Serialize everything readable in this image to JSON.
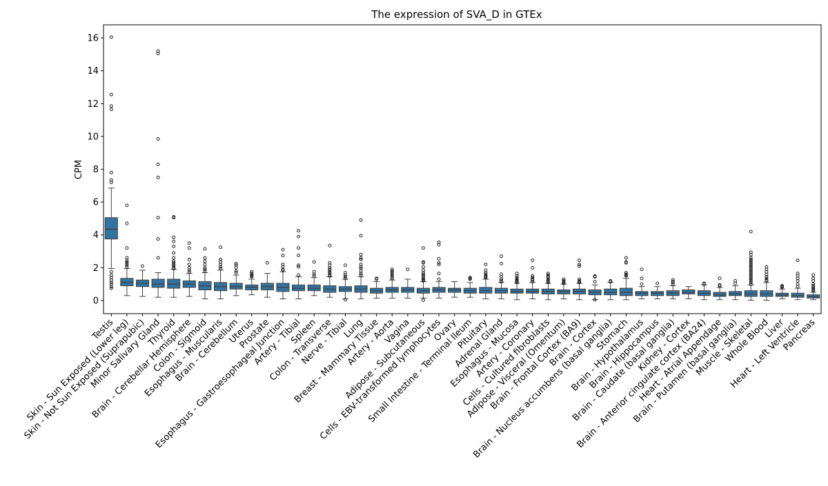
{
  "chart_data": {
    "type": "box",
    "title": "The expression of SVA_D in GTEx",
    "xlabel": "",
    "ylabel": "CPM",
    "ylim": [
      -0.8,
      16.8
    ],
    "yticks": [
      0,
      2,
      4,
      6,
      8,
      10,
      12,
      14,
      16
    ],
    "grid": false,
    "legend": "none",
    "box_color": "#3274a1",
    "categories": [
      "Testis",
      "Skin - Sun Exposed (Lower leg)",
      "Skin - Not Sun Exposed (Suprapubic)",
      "Minor Salivary Gland",
      "Thyroid",
      "Brain - Cerebellar Hemisphere",
      "Colon - Sigmoid",
      "Esophagus - Muscularis",
      "Brain - Cerebellum",
      "Uterus",
      "Prostate",
      "Esophagus - Gastroesophageal Junction",
      "Artery - Tibial",
      "Spleen",
      "Colon - Transverse",
      "Nerve - Tibial",
      "Lung",
      "Breast - Mammary Tissue",
      "Artery - Aorta",
      "Vagina",
      "Adipose - Subcutaneous",
      "Cells - EBV-transformed lymphocytes",
      "Ovary",
      "Small Intestine - Terminal Ileum",
      "Pituitary",
      "Adrenal Gland",
      "Esophagus - Mucosa",
      "Artery - Coronary",
      "Cells - Cultured fibroblasts",
      "Adipose - Visceral (Omentum)",
      "Brain - Frontal Cortex (BA9)",
      "Brain - Cortex",
      "Brain - Nucleus accumbens (basal ganglia)",
      "Stomach",
      "Brain - Hypothalamus",
      "Brain - Hippocampus",
      "Brain - Caudate (basal ganglia)",
      "Kidney - Cortex",
      "Brain - Anterior cingulate cortex (BA24)",
      "Heart - Atrial Appendage",
      "Brain - Putamen (basal ganglia)",
      "Muscle - Skeletal",
      "Whole Blood",
      "Liver",
      "Heart - Left Ventricle",
      "Pancreas"
    ],
    "boxes": [
      {
        "whislo": 1.95,
        "q1": 3.75,
        "med": 4.35,
        "q3": 5.05,
        "whishi": 6.85,
        "fliers": [
          16.05,
          12.55,
          11.85,
          11.65,
          7.8,
          7.35,
          7.2,
          1.75,
          1.55,
          1.4,
          1.25,
          1.1,
          1.0,
          0.85,
          0.75
        ]
      },
      {
        "whislo": 0.3,
        "q1": 0.9,
        "med": 1.1,
        "q3": 1.35,
        "whishi": 1.95,
        "fliers": [
          5.8,
          4.7,
          3.2,
          2.6,
          2.45,
          2.35,
          2.25,
          2.15,
          2.05
        ]
      },
      {
        "whislo": 0.25,
        "q1": 0.85,
        "med": 1.05,
        "q3": 1.25,
        "whishi": 1.85,
        "fliers": [
          2.1
        ]
      },
      {
        "whislo": 0.2,
        "q1": 0.8,
        "med": 1.0,
        "q3": 1.3,
        "whishi": 1.7,
        "fliers": [
          15.2,
          15.05,
          9.85,
          8.3,
          7.5,
          5.05,
          3.75,
          2.6
        ]
      },
      {
        "whislo": 0.2,
        "q1": 0.75,
        "med": 1.0,
        "q3": 1.3,
        "whishi": 1.9,
        "fliers": [
          5.1,
          5.05,
          3.85,
          3.6,
          3.3,
          2.9,
          2.6,
          2.4,
          2.3,
          2.2,
          2.1,
          2.0,
          1.95
        ]
      },
      {
        "whislo": 0.25,
        "q1": 0.8,
        "med": 1.0,
        "q3": 1.2,
        "whishi": 1.65,
        "fliers": [
          3.5,
          3.2,
          2.5,
          2.2,
          2.0,
          1.85,
          1.75
        ]
      },
      {
        "whislo": 0.1,
        "q1": 0.65,
        "med": 0.9,
        "q3": 1.15,
        "whishi": 1.7,
        "fliers": [
          3.15,
          2.6,
          2.4,
          2.2,
          2.0,
          1.9,
          1.8
        ]
      },
      {
        "whislo": 0.1,
        "q1": 0.6,
        "med": 0.85,
        "q3": 1.1,
        "whishi": 1.85,
        "fliers": [
          3.25,
          2.5,
          2.35,
          2.2,
          2.05,
          1.95
        ]
      },
      {
        "whislo": 0.3,
        "q1": 0.7,
        "med": 0.85,
        "q3": 1.05,
        "whishi": 1.55,
        "fliers": [
          2.25,
          2.15,
          2.0,
          1.8,
          1.7
        ]
      },
      {
        "whislo": 0.35,
        "q1": 0.65,
        "med": 0.8,
        "q3": 0.95,
        "whishi": 1.3,
        "fliers": [
          1.75,
          1.65,
          1.55,
          1.5,
          1.45
        ]
      },
      {
        "whislo": 0.2,
        "q1": 0.65,
        "med": 0.85,
        "q3": 1.05,
        "whishi": 1.65,
        "fliers": [
          2.3
        ]
      },
      {
        "whislo": 0.1,
        "q1": 0.55,
        "med": 0.8,
        "q3": 1.05,
        "whishi": 1.75,
        "fliers": [
          3.1,
          2.75,
          2.2,
          2.05,
          1.9,
          1.85
        ]
      },
      {
        "whislo": 0.1,
        "q1": 0.6,
        "med": 0.75,
        "q3": 0.95,
        "whishi": 1.45,
        "fliers": [
          4.25,
          3.9,
          3.2,
          2.75,
          2.15,
          2.05,
          1.55
        ]
      },
      {
        "whislo": 0.3,
        "q1": 0.6,
        "med": 0.75,
        "q3": 0.95,
        "whishi": 1.4,
        "fliers": [
          2.35,
          1.75,
          1.6,
          1.5
        ]
      },
      {
        "whislo": 0.2,
        "q1": 0.5,
        "med": 0.7,
        "q3": 0.9,
        "whishi": 1.45,
        "fliers": [
          3.35,
          2.3,
          2.15,
          2.0,
          1.9,
          1.85,
          1.75,
          1.65,
          1.55,
          1.5
        ]
      },
      {
        "whislo": 0.1,
        "q1": 0.55,
        "med": 0.7,
        "q3": 0.85,
        "whishi": 1.3,
        "fliers": [
          2.15,
          1.7,
          1.55,
          1.45,
          1.35,
          0.05
        ]
      },
      {
        "whislo": 0.1,
        "q1": 0.5,
        "med": 0.7,
        "q3": 0.9,
        "whishi": 1.45,
        "fliers": [
          4.9,
          3.95,
          2.8,
          2.6,
          2.5,
          2.2,
          2.05,
          1.95,
          1.8,
          1.65,
          1.55
        ]
      },
      {
        "whislo": 0.15,
        "q1": 0.45,
        "med": 0.6,
        "q3": 0.75,
        "whishi": 1.15,
        "fliers": [
          1.35,
          1.3
        ]
      },
      {
        "whislo": 0.15,
        "q1": 0.5,
        "med": 0.65,
        "q3": 0.8,
        "whishi": 1.25,
        "fliers": [
          1.9,
          1.8,
          1.7,
          1.6,
          1.5,
          1.4,
          1.35
        ]
      },
      {
        "whislo": 0.15,
        "q1": 0.5,
        "med": 0.65,
        "q3": 0.8,
        "whishi": 1.3,
        "fliers": [
          1.9
        ]
      },
      {
        "whislo": 0.15,
        "q1": 0.45,
        "med": 0.6,
        "q3": 0.75,
        "whishi": 1.15,
        "fliers": [
          3.2,
          2.35,
          2.3,
          2.05,
          1.85,
          1.7,
          1.6,
          1.5,
          1.4,
          1.3,
          1.25,
          1.2,
          0.02
        ]
      },
      {
        "whislo": 0.15,
        "q1": 0.5,
        "med": 0.65,
        "q3": 0.8,
        "whishi": 1.15,
        "fliers": [
          3.55,
          3.4,
          2.55,
          2.3,
          2.2,
          1.65,
          1.3
        ]
      },
      {
        "whislo": 0.2,
        "q1": 0.5,
        "med": 0.65,
        "q3": 0.75,
        "whishi": 1.15,
        "fliers": []
      },
      {
        "whislo": 0.2,
        "q1": 0.45,
        "med": 0.6,
        "q3": 0.75,
        "whishi": 1.1,
        "fliers": [
          1.4,
          1.35,
          1.3
        ]
      },
      {
        "whislo": 0.1,
        "q1": 0.45,
        "med": 0.6,
        "q3": 0.8,
        "whishi": 1.3,
        "fliers": [
          2.2,
          1.85,
          1.7,
          1.6,
          1.5,
          1.45,
          1.4
        ]
      },
      {
        "whislo": 0.1,
        "q1": 0.45,
        "med": 0.6,
        "q3": 0.75,
        "whishi": 1.1,
        "fliers": [
          2.7,
          2.25,
          1.6,
          1.45,
          1.3,
          1.2,
          1.15
        ]
      },
      {
        "whislo": 0.05,
        "q1": 0.45,
        "med": 0.55,
        "q3": 0.7,
        "whishi": 1.05,
        "fliers": [
          1.65,
          1.5,
          1.4,
          1.3,
          1.25,
          1.2,
          1.15,
          1.1
        ]
      },
      {
        "whislo": 0.1,
        "q1": 0.45,
        "med": 0.55,
        "q3": 0.7,
        "whishi": 1.1,
        "fliers": [
          2.45,
          2.0,
          1.5,
          1.4,
          1.3,
          1.25,
          1.15
        ]
      },
      {
        "whislo": 0.05,
        "q1": 0.4,
        "med": 0.55,
        "q3": 0.7,
        "whishi": 1.05,
        "fliers": [
          1.65,
          1.55,
          1.45,
          1.4,
          1.3,
          1.2,
          1.15,
          1.1
        ]
      },
      {
        "whislo": 0.1,
        "q1": 0.4,
        "med": 0.55,
        "q3": 0.65,
        "whishi": 1.0,
        "fliers": [
          1.3,
          1.2,
          1.15,
          1.1,
          1.05
        ]
      },
      {
        "whislo": 0.05,
        "q1": 0.4,
        "med": 0.55,
        "q3": 0.7,
        "whishi": 1.05,
        "fliers": [
          2.45,
          2.2,
          2.1,
          1.3,
          1.2,
          1.15,
          1.1
        ]
      },
      {
        "whislo": 0.05,
        "q1": 0.35,
        "med": 0.5,
        "q3": 0.65,
        "whishi": 0.95,
        "fliers": [
          1.5,
          1.45,
          1.15,
          0.05
        ]
      },
      {
        "whislo": 0.05,
        "q1": 0.35,
        "med": 0.5,
        "q3": 0.7,
        "whishi": 1.1,
        "fliers": [
          1.2,
          1.15
        ]
      },
      {
        "whislo": 0.05,
        "q1": 0.3,
        "med": 0.5,
        "q3": 0.75,
        "whishi": 1.35,
        "fliers": [
          2.6,
          2.35,
          2.3,
          1.7,
          1.6,
          1.55,
          1.5
        ]
      },
      {
        "whislo": 0.1,
        "q1": 0.3,
        "med": 0.45,
        "q3": 0.55,
        "whishi": 0.85,
        "fliers": [
          1.9,
          1.35,
          1.0
        ]
      },
      {
        "whislo": 0.1,
        "q1": 0.3,
        "med": 0.45,
        "q3": 0.55,
        "whishi": 0.85,
        "fliers": [
          1.05
        ]
      },
      {
        "whislo": 0.1,
        "q1": 0.3,
        "med": 0.45,
        "q3": 0.6,
        "whishi": 0.9,
        "fliers": [
          1.25,
          1.15,
          1.1,
          1.0
        ]
      },
      {
        "whislo": 0.1,
        "q1": 0.4,
        "med": 0.5,
        "q3": 0.65,
        "whishi": 0.85,
        "fliers": []
      },
      {
        "whislo": 0.05,
        "q1": 0.3,
        "med": 0.45,
        "q3": 0.6,
        "whishi": 0.95,
        "fliers": [
          1.05,
          1.0
        ]
      },
      {
        "whislo": 0.05,
        "q1": 0.25,
        "med": 0.35,
        "q3": 0.5,
        "whishi": 0.8,
        "fliers": [
          1.35,
          0.95,
          0.9
        ]
      },
      {
        "whislo": 0.05,
        "q1": 0.3,
        "med": 0.4,
        "q3": 0.55,
        "whishi": 0.9,
        "fliers": [
          1.2,
          1.05
        ]
      },
      {
        "whislo": 0.02,
        "q1": 0.25,
        "med": 0.4,
        "q3": 0.6,
        "whishi": 0.95,
        "fliers": [
          4.2,
          2.95,
          2.8,
          2.6,
          2.5,
          2.4,
          2.3,
          2.2,
          2.1,
          2.0,
          1.9,
          1.8,
          1.7,
          1.6,
          1.5,
          1.4,
          1.3,
          1.2,
          1.1,
          1.0
        ]
      },
      {
        "whislo": 0.02,
        "q1": 0.25,
        "med": 0.4,
        "q3": 0.6,
        "whishi": 1.1,
        "fliers": [
          2.05,
          1.9,
          1.75,
          1.6,
          1.45,
          1.35,
          1.25,
          1.2
        ]
      },
      {
        "whislo": 0.1,
        "q1": 0.25,
        "med": 0.35,
        "q3": 0.45,
        "whishi": 0.7,
        "fliers": [
          0.9,
          0.85,
          0.8
        ]
      },
      {
        "whislo": 0.05,
        "q1": 0.2,
        "med": 0.3,
        "q3": 0.45,
        "whishi": 0.75,
        "fliers": [
          2.45,
          1.65,
          1.5,
          1.35,
          1.2,
          1.0,
          0.85
        ]
      },
      {
        "whislo": 0.05,
        "q1": 0.15,
        "med": 0.25,
        "q3": 0.35,
        "whishi": 0.5,
        "fliers": [
          1.55,
          1.35,
          1.2,
          1.0,
          0.9,
          0.8,
          0.7,
          0.65,
          0.6
        ]
      }
    ]
  }
}
